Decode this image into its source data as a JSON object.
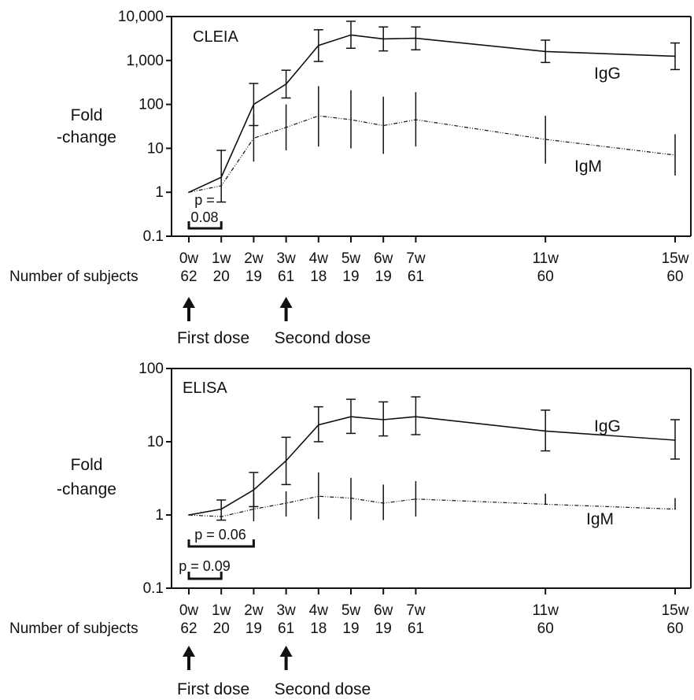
{
  "chart_data": [
    {
      "type": "line",
      "title": "CLEIA",
      "ylabel_lines": [
        "Fold",
        "-change"
      ],
      "yscale": "log",
      "ylim": [
        0.1,
        10000
      ],
      "yticks": [
        0.1,
        1,
        10,
        100,
        1000,
        10000
      ],
      "ytick_labels": [
        "0.1",
        "1",
        "10",
        "100",
        "1,000",
        "10,000"
      ],
      "x": [
        0,
        1,
        2,
        3,
        4,
        5,
        6,
        7,
        11,
        15
      ],
      "xtick_labels": [
        "0w",
        "1w",
        "2w",
        "3w",
        "4w",
        "5w",
        "6w",
        "7w",
        "11w",
        "15w"
      ],
      "subjects_label": "Number of subjects",
      "subjects": [
        "62",
        "20",
        "19",
        "61",
        "18",
        "19",
        "19",
        "61",
        "60",
        "60"
      ],
      "series": [
        {
          "name": "IgG",
          "style": "solid",
          "values": [
            1,
            2.2,
            100,
            290,
            2200,
            3800,
            3100,
            3200,
            1600,
            1250
          ],
          "err_low": [
            null,
            0.6,
            33,
            140,
            950,
            1900,
            1650,
            1750,
            900,
            620
          ],
          "err_high": [
            null,
            9,
            300,
            600,
            5000,
            7800,
            5800,
            5800,
            2900,
            2500
          ]
        },
        {
          "name": "IgM",
          "style": "dashdot",
          "values": [
            1,
            1.4,
            17,
            30,
            55,
            45,
            33,
            45,
            16,
            7
          ],
          "err_low": [
            null,
            null,
            5,
            9,
            11,
            10,
            7.5,
            11,
            4.5,
            2.4
          ],
          "err_high": [
            null,
            null,
            60,
            100,
            260,
            210,
            150,
            190,
            55,
            21
          ]
        }
      ],
      "pvalues": [
        {
          "label_lines": [
            "p =",
            "0.08"
          ],
          "from": 0,
          "to": 1
        }
      ],
      "annotations": [
        {
          "x": 0,
          "text": "First dose"
        },
        {
          "x": 3,
          "text": "Second dose"
        }
      ]
    },
    {
      "type": "line",
      "title": "ELISA",
      "ylabel_lines": [
        "Fold",
        "-change"
      ],
      "yscale": "log",
      "ylim": [
        0.1,
        100
      ],
      "yticks": [
        0.1,
        1,
        10,
        100
      ],
      "ytick_labels": [
        "0.1",
        "1",
        "10",
        "100"
      ],
      "x": [
        0,
        1,
        2,
        3,
        4,
        5,
        6,
        7,
        11,
        15
      ],
      "xtick_labels": [
        "0w",
        "1w",
        "2w",
        "3w",
        "4w",
        "5w",
        "6w",
        "7w",
        "11w",
        "15w"
      ],
      "subjects_label": "Number of subjects",
      "subjects": [
        "62",
        "20",
        "19",
        "61",
        "18",
        "19",
        "19",
        "61",
        "60",
        "60"
      ],
      "series": [
        {
          "name": "IgG",
          "style": "solid",
          "values": [
            1,
            1.2,
            2.2,
            5.5,
            17,
            22,
            20,
            22,
            14,
            10.5
          ],
          "err_low": [
            null,
            0.85,
            1.3,
            2.6,
            10,
            13,
            12,
            12.5,
            7.5,
            5.8
          ],
          "err_high": [
            null,
            1.6,
            3.8,
            11.5,
            30,
            38,
            35,
            41,
            27,
            20
          ]
        },
        {
          "name": "IgM",
          "style": "dashdot",
          "values": [
            1,
            0.95,
            1.2,
            1.45,
            1.8,
            1.7,
            1.45,
            1.65,
            1.4,
            1.2
          ],
          "err_low": [
            null,
            null,
            0.82,
            0.95,
            0.88,
            0.85,
            0.85,
            0.95,
            null,
            null
          ],
          "err_high": [
            null,
            null,
            2.0,
            2.1,
            3.8,
            3.2,
            2.6,
            2.9,
            1.95,
            1.7
          ]
        }
      ],
      "pvalues": [
        {
          "label_lines": [
            "p = 0.06"
          ],
          "from": 0,
          "to": 2
        },
        {
          "label_lines": [
            "p = 0.09"
          ],
          "from": 0,
          "to": 1
        }
      ],
      "annotations": [
        {
          "x": 0,
          "text": "First dose"
        },
        {
          "x": 3,
          "text": "Second dose"
        }
      ]
    }
  ]
}
